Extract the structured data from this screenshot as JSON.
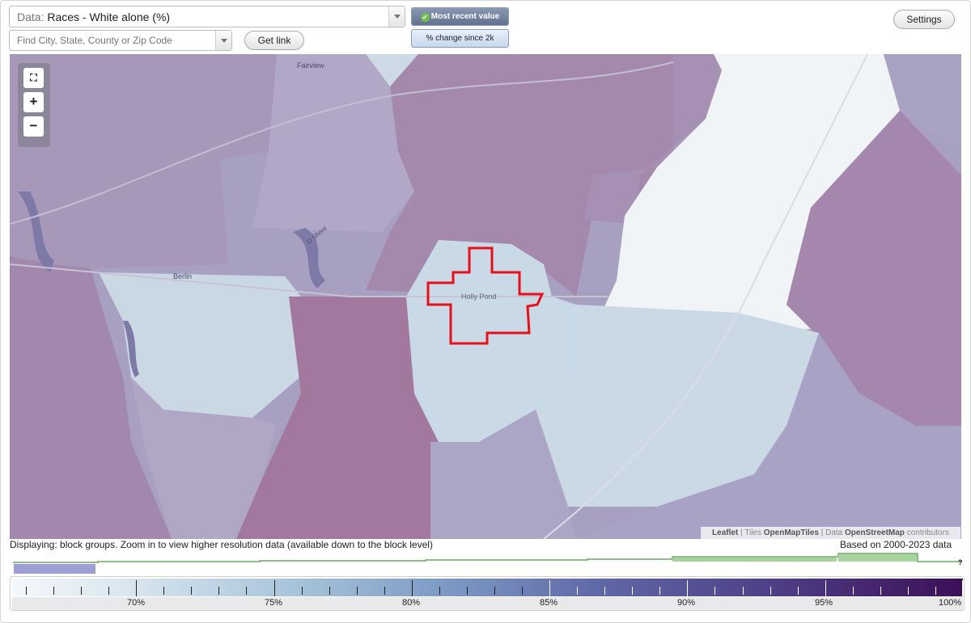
{
  "controls": {
    "data_prefix": "Data:",
    "data_value": "Races - White alone (%)",
    "find_placeholder": "Find City, State, County or Zip Code",
    "get_link": "Get link",
    "settings": "Settings",
    "toggle_recent": "Most recent value",
    "toggle_change": "% change since 2k",
    "toggle_selected": "Most recent value"
  },
  "map": {
    "places": [
      "Fairview",
      "Berlin",
      "Holly Pond"
    ],
    "road_label": "D Shore",
    "attribution": {
      "leaflet": "Leaflet",
      "sep1": " | Tiles ",
      "tiles": "OpenMapTiles",
      "sep2": " | Data ",
      "data": "OpenStreetMap",
      "tail": " contributors"
    },
    "highlight_color": "#e8101a",
    "zoom": {
      "fullscreen": "fullscreen-icon",
      "in": "+",
      "out": "−"
    }
  },
  "status": {
    "displaying": "Displaying: block groups. Zoom in to view higher resolution data (available down to the block level)",
    "based_on": "Based on 2000-2023 data"
  },
  "timeline": {
    "unknown": "?"
  },
  "legend": {
    "labels": [
      "70%",
      "75%",
      "80%",
      "85%",
      "90%",
      "95%",
      "100%"
    ],
    "colors": {
      "low": "#f4f8fb",
      "mid": "#7e9cc6",
      "high": "#3c0f57"
    }
  }
}
